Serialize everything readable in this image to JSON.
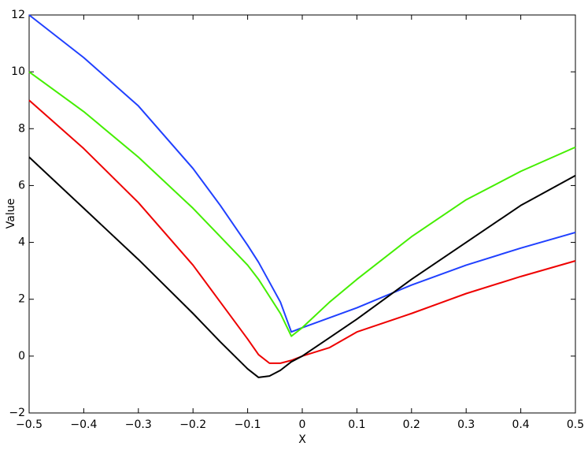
{
  "chart_data": {
    "type": "line",
    "x_label": "X",
    "y_label": "Value",
    "x": [
      -0.5,
      -0.4,
      -0.3,
      -0.2,
      -0.15,
      -0.1,
      -0.08,
      -0.06,
      -0.04,
      -0.02,
      0,
      0.05,
      0.1,
      0.2,
      0.3,
      0.4,
      0.5
    ],
    "series": [
      {
        "color": "#2040ff",
        "values": [
          12,
          10.5,
          8.8,
          6.6,
          5.3,
          3.9,
          3.3,
          2.6,
          1.9,
          0.85,
          1.0,
          1.35,
          1.7,
          2.5,
          3.2,
          3.8,
          4.35
        ]
      },
      {
        "color": "#44ee00",
        "values": [
          10,
          8.6,
          7.0,
          5.2,
          4.2,
          3.2,
          2.7,
          2.1,
          1.5,
          0.7,
          1.0,
          1.9,
          2.7,
          4.2,
          5.5,
          6.5,
          7.35
        ]
      },
      {
        "color": "#ee0000",
        "values": [
          9,
          7.3,
          5.4,
          3.2,
          1.9,
          0.6,
          0.05,
          -0.25,
          -0.25,
          -0.15,
          0.0,
          0.3,
          0.85,
          1.5,
          2.2,
          2.8,
          3.35
        ]
      },
      {
        "color": "#000000",
        "values": [
          7,
          5.2,
          3.4,
          1.5,
          0.5,
          -0.45,
          -0.75,
          -0.7,
          -0.5,
          -0.2,
          0.0,
          0.65,
          1.3,
          2.7,
          4.0,
          5.3,
          6.35
        ]
      }
    ],
    "xlim": [
      -0.5,
      0.5
    ],
    "xticks": [
      {
        "value": -0.5,
        "label": "−0.5"
      },
      {
        "value": -0.4,
        "label": "−0.4"
      },
      {
        "value": -0.3,
        "label": "−0.3"
      },
      {
        "value": -0.2,
        "label": "−0.2"
      },
      {
        "value": -0.1,
        "label": "−0.1"
      },
      0,
      0.1,
      0.2,
      0.3,
      0.4,
      0.5
    ],
    "ylim": [
      -2,
      12
    ],
    "yticks": [
      {
        "value": -2,
        "label": "−2"
      },
      0,
      2,
      4,
      6,
      8,
      10,
      12
    ],
    "grid": false
  }
}
